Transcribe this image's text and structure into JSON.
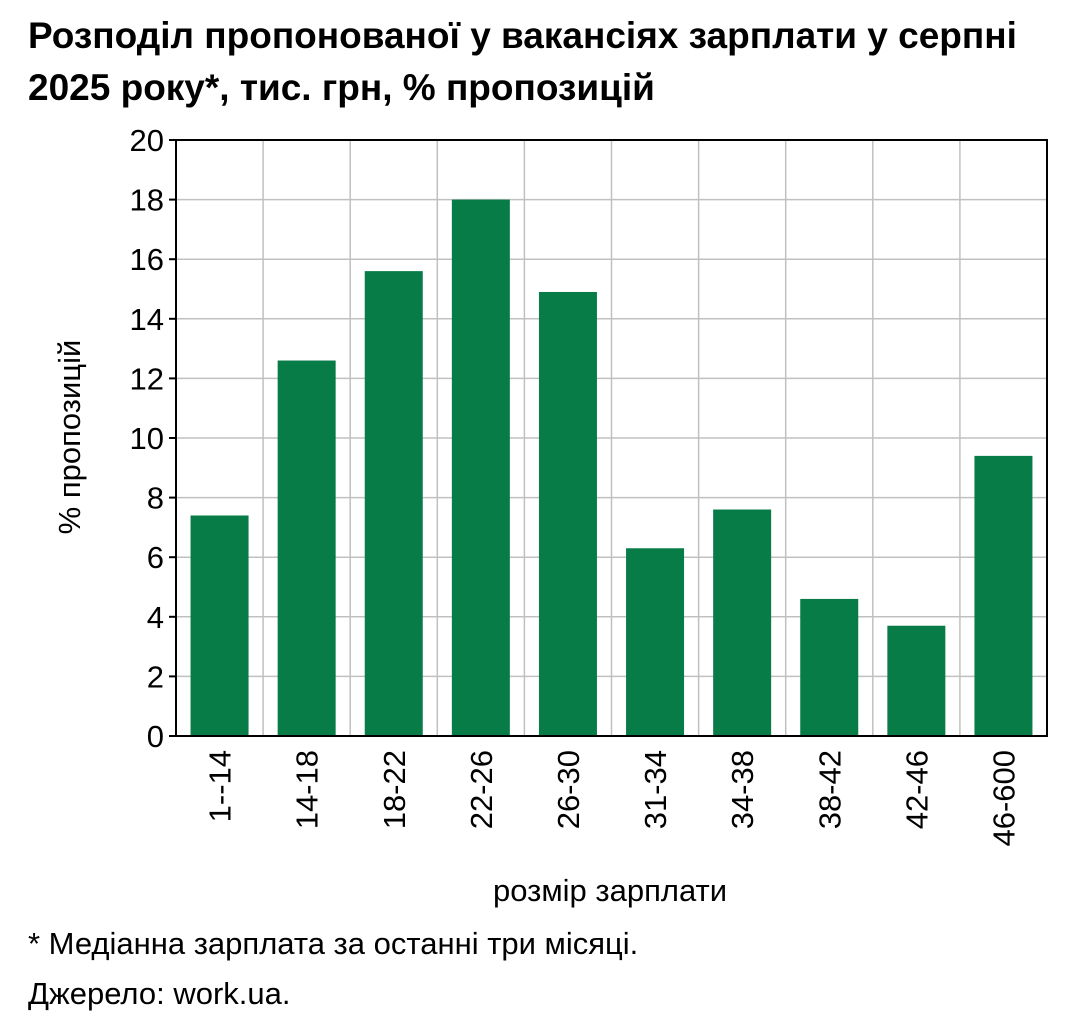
{
  "title": "Розподіл пропонованої у вакансіях зарплати у серпні 2025 року*, тис. грн, % пропозицій",
  "footnote": "* Медіанна зарплата за останні три місяці.",
  "source": "Джерело: work.ua.",
  "colors": {
    "bar": "#077c46",
    "grid": "#c0c0c0",
    "axis": "#000000"
  },
  "chart_data": {
    "type": "bar",
    "categories": [
      "1--14",
      "14-18",
      "18-22",
      "22-26",
      "26-30",
      "31-34",
      "34-38",
      "38-42",
      "42-46",
      "46-600"
    ],
    "values": [
      7.4,
      12.6,
      15.6,
      18.0,
      14.9,
      6.3,
      7.6,
      4.6,
      3.7,
      9.4
    ],
    "title": "Розподіл пропонованої у вакансіях зарплати у серпні 2025 року*, тис. грн, % пропозицій",
    "xlabel": "розмір зарплати",
    "ylabel": "% пропозицій",
    "ylim": [
      0,
      20
    ],
    "yticks": [
      0,
      2,
      4,
      6,
      8,
      10,
      12,
      14,
      16,
      18,
      20
    ],
    "grid": true,
    "legend": "none"
  }
}
